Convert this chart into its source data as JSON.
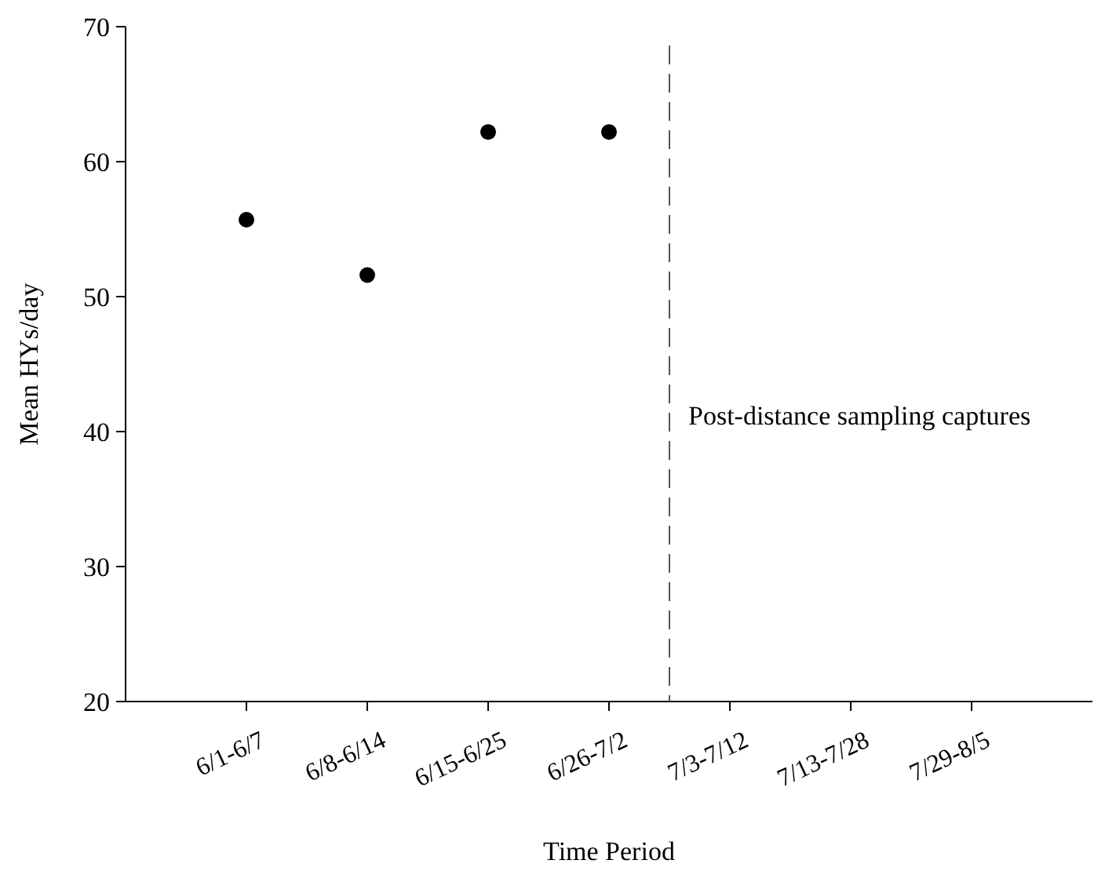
{
  "chart_data": {
    "type": "scatter",
    "xlabel": "Time Period",
    "ylabel": "Mean HYs/day",
    "categories": [
      "6/1-6/7",
      "6/8-6/14",
      "6/15-6/25",
      "6/26-7/2",
      "7/3-7/12",
      "7/13-7/28",
      "7/29-8/5"
    ],
    "series": [
      {
        "color": "#000000",
        "values": [
          55.7,
          51.6,
          62.2,
          62.2,
          null,
          null,
          null
        ]
      }
    ],
    "ylim": [
      20,
      70
    ],
    "yticks": [
      20,
      30,
      40,
      50,
      60,
      70
    ],
    "marker": "circle",
    "annotations": [
      "Post-distance sampling captures"
    ]
  }
}
